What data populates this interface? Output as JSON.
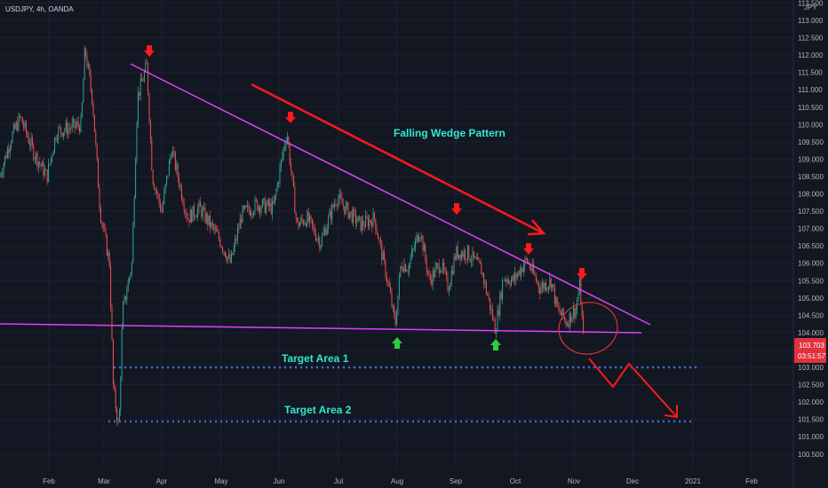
{
  "header": {
    "symbol_line": "USDJPY, 4h, OANDA",
    "currency": "JPY"
  },
  "colors": {
    "background": "#131722",
    "up": "#26a69a",
    "down": "#ef5350",
    "wick_up": "#53b987",
    "wick_down": "#eb4d5c",
    "trendline": "#e040fb",
    "arrow_red": "#ff1a1a",
    "arrow_green": "#2dcc3f",
    "pattern_label": "#2fe8d0",
    "target_label": "#2fe8d0",
    "target_line": "#3d6fd6",
    "price_tag": "#e0323d",
    "axis_text": "#b2b5be"
  },
  "annotations": {
    "pattern_label": "Falling Wedge Pattern",
    "target_1_label": "Target Area 1",
    "target_2_label": "Target Area 2",
    "last_price": "103.703",
    "countdown": "03:51:57"
  },
  "chart_data": {
    "type": "candlestick",
    "title": "USDJPY, 4h, OANDA",
    "ylim": [
      100.0,
      113.5
    ],
    "y_ticks": [
      "113.500",
      "113.000",
      "112.500",
      "112.000",
      "111.500",
      "111.000",
      "110.500",
      "110.000",
      "109.500",
      "109.000",
      "108.500",
      "108.000",
      "107.500",
      "107.000",
      "106.500",
      "106.000",
      "105.500",
      "105.000",
      "104.500",
      "104.000",
      "103.500",
      "103.000",
      "102.500",
      "102.000",
      "101.500",
      "101.000",
      "100.500"
    ],
    "x_ticks": [
      "Feb",
      "Mar",
      "Apr",
      "May",
      "Jun",
      "Jul",
      "Aug",
      "Sep",
      "Oct",
      "Nov",
      "Dec",
      "2021",
      "Feb"
    ],
    "price_path": [
      [
        "2020-01-06",
        108.5
      ],
      [
        "2020-01-12",
        109.6
      ],
      [
        "2020-01-17",
        110.2
      ],
      [
        "2020-01-24",
        109.2
      ],
      [
        "2020-01-31",
        108.5
      ],
      [
        "2020-02-05",
        109.8
      ],
      [
        "2020-02-12",
        109.9
      ],
      [
        "2020-02-18",
        110.0
      ],
      [
        "2020-02-20",
        112.2
      ],
      [
        "2020-02-24",
        110.7
      ],
      [
        "2020-02-28",
        107.5
      ],
      [
        "2020-03-04",
        106.0
      ],
      [
        "2020-03-06",
        102.4
      ],
      [
        "2020-03-09",
        101.2
      ],
      [
        "2020-03-11",
        104.6
      ],
      [
        "2020-03-16",
        106.0
      ],
      [
        "2020-03-19",
        110.8
      ],
      [
        "2020-03-24",
        111.7
      ],
      [
        "2020-03-27",
        108.5
      ],
      [
        "2020-04-01",
        107.5
      ],
      [
        "2020-04-06",
        109.3
      ],
      [
        "2020-04-14",
        107.3
      ],
      [
        "2020-04-20",
        107.6
      ],
      [
        "2020-04-30",
        106.7
      ],
      [
        "2020-05-06",
        106.0
      ],
      [
        "2020-05-12",
        107.4
      ],
      [
        "2020-05-20",
        107.7
      ],
      [
        "2020-05-29",
        107.6
      ],
      [
        "2020-06-03",
        109.2
      ],
      [
        "2020-06-05",
        109.8
      ],
      [
        "2020-06-10",
        107.1
      ],
      [
        "2020-06-15",
        107.3
      ],
      [
        "2020-06-22",
        106.6
      ],
      [
        "2020-06-30",
        107.9
      ],
      [
        "2020-07-06",
        107.5
      ],
      [
        "2020-07-13",
        107.1
      ],
      [
        "2020-07-20",
        107.3
      ],
      [
        "2020-07-28",
        105.2
      ],
      [
        "2020-07-31",
        104.2
      ],
      [
        "2020-08-03",
        106.0
      ],
      [
        "2020-08-07",
        105.9
      ],
      [
        "2020-08-13",
        107.0
      ],
      [
        "2020-08-18",
        105.5
      ],
      [
        "2020-08-24",
        106.0
      ],
      [
        "2020-08-28",
        105.3
      ],
      [
        "2020-09-01",
        106.3
      ],
      [
        "2020-09-07",
        106.3
      ],
      [
        "2020-09-14",
        105.8
      ],
      [
        "2020-09-21",
        104.1
      ],
      [
        "2020-09-25",
        105.6
      ],
      [
        "2020-09-30",
        105.5
      ],
      [
        "2020-10-07",
        106.1
      ],
      [
        "2020-10-14",
        105.3
      ],
      [
        "2020-10-20",
        105.5
      ],
      [
        "2020-10-23",
        104.7
      ],
      [
        "2020-10-28",
        104.3
      ],
      [
        "2020-11-02",
        104.7
      ],
      [
        "2020-11-04",
        105.4
      ],
      [
        "2020-11-06",
        103.7
      ]
    ]
  }
}
